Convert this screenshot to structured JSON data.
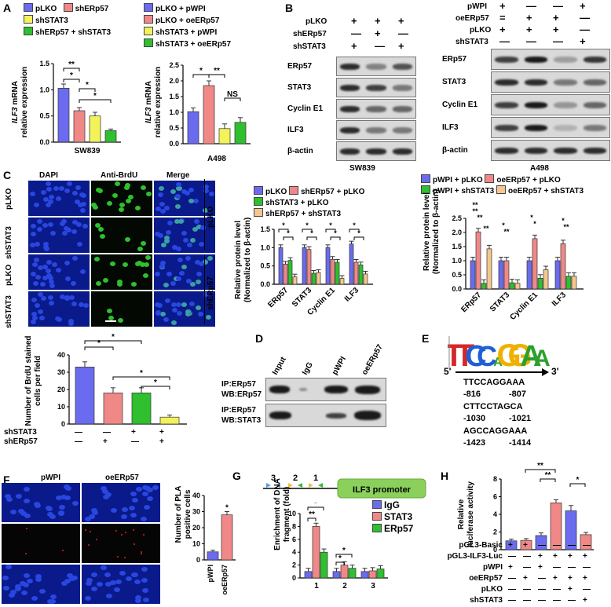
{
  "colors": {
    "blue": "#6b6bf0",
    "red": "#f08888",
    "yellow": "#f2f25a",
    "green": "#2fbf2f",
    "orange": "#f5c68f",
    "dapi": "#0c22a6",
    "brdu": "#169a16"
  },
  "panels": [
    "A",
    "B",
    "C",
    "D",
    "E",
    "F",
    "G",
    "H"
  ],
  "A": {
    "legend1": [
      "pLKO",
      "shERp57",
      "shSTAT3",
      "shERp57 + shSTAT3"
    ],
    "legend2": [
      "pLKO + pWPI",
      "pLKO + oeERp57",
      "shSTAT3 + pWPI",
      "shSTAT3 + oeERp57"
    ],
    "ylabel_gene": "ILF3",
    "ylabel_rest": " mRNA",
    "ylabel_line2": "relative expression",
    "sig1": [
      "**",
      "*",
      "*",
      "*"
    ],
    "sig2": [
      "*",
      "**",
      "NS"
    ]
  },
  "B": {
    "sw839_rows": [
      "pLKO",
      "shERp57",
      "shSTAT3"
    ],
    "sw839_signs": [
      [
        "+",
        "+",
        "+"
      ],
      [
        "—",
        "+",
        "—"
      ],
      [
        "+",
        "—",
        "+"
      ]
    ],
    "a498_rows": [
      "pWPI",
      "oeERp57",
      "pLKO",
      "shSTAT3"
    ],
    "a498_signs": [
      [
        "+",
        "—",
        "—",
        "+"
      ],
      [
        "=",
        "+",
        "+",
        "—"
      ],
      [
        "+",
        "+",
        "+",
        "—"
      ],
      [
        "—",
        "—",
        "—",
        "+"
      ]
    ],
    "proteins": [
      "ERp57",
      "STAT3",
      "Cyclin E1",
      "ILF3",
      "β-actin"
    ],
    "label_sw839": "SW839",
    "label_a498": "A498"
  },
  "C": {
    "col_headers": [
      "DAPI",
      "Anti-BrdU",
      "Merge"
    ],
    "row_labels": [
      "pLKO",
      "shSTAT3",
      "pLKO",
      "shSTAT3"
    ],
    "group_labels": [
      "pLKO",
      "shERp57"
    ],
    "sig_brdu": [
      "*",
      "*",
      "*",
      "*"
    ],
    "mid_legend": [
      "pLKO",
      "shERp57 + pLKO",
      "shSTAT3 + pLKO",
      "shERp57 + shSTAT3"
    ],
    "right_legend": [
      "pWPI + pLKO",
      "oeERp57 + pLKO",
      "pWPI + shSTAT3",
      "oeERp57 + shSTAT3"
    ],
    "protein_ylabel1": "Relative protein level",
    "protein_ylabel2": "(Normalized to β-actin)",
    "brdu_ylabel1": "Number of BrdU stained",
    "brdu_ylabel2": "cells per field",
    "brdu_rows": [
      "shSTAT3",
      "shERp57"
    ],
    "brdu_signs": [
      [
        "—",
        "—",
        "+",
        "+"
      ],
      [
        "—",
        "+",
        "—",
        "+"
      ]
    ]
  },
  "D": {
    "lanes": [
      "Input",
      "IgG",
      "pWPI",
      "oeERp57"
    ],
    "rows": [
      "IP:ERp57\nWB:ERp57",
      "IP:ERp57\nWB:STAT3"
    ]
  },
  "E": {
    "motif_letters": [
      "T",
      "T",
      "C",
      "C",
      "A",
      "G",
      "G",
      "A",
      "A"
    ],
    "prime5": "5'",
    "prime3": "3'",
    "seqs": [
      "TTCCAGGAAA",
      "CTTCCTAGCA",
      "AGCCAGGAAA"
    ],
    "positions": [
      [
        "-816",
        "-807"
      ],
      [
        "-1030",
        "-1021"
      ],
      [
        "-1423",
        "-1414"
      ]
    ]
  },
  "F": {
    "cols": [
      "pWPI",
      "oeERp57"
    ],
    "ylabel1": "Number of PLA",
    "ylabel2": "positive cells",
    "sig": "*"
  },
  "G": {
    "site_numbers": [
      "3",
      "2",
      "1"
    ],
    "promoter": "ILF3 promoter",
    "legend": [
      "IgG",
      "STAT3",
      "ERp57"
    ],
    "ylabel1": "Enrichment of DNA",
    "ylabel2": "fragment (fold)",
    "sig": [
      "*",
      "**",
      "*",
      "*"
    ]
  },
  "H": {
    "ylabel1": "Relative",
    "ylabel2": "luciferase activity",
    "rows": [
      "pGL3-Basic",
      "pGL3-ILF3-Luc",
      "pWPI",
      "oeERp57",
      "pLKO",
      "shSTAT3"
    ],
    "signs": [
      [
        "+",
        "+",
        "—",
        "—",
        "—",
        "—"
      ],
      [
        "—",
        "—",
        "+",
        "+",
        "+",
        "+"
      ],
      [
        "+",
        "—",
        "+",
        "—",
        "—",
        "—"
      ],
      [
        "—",
        "+",
        "—",
        "+",
        "+",
        "+"
      ],
      [
        "—",
        "—",
        "—",
        "—",
        "+",
        "—"
      ],
      [
        "—",
        "—",
        "—",
        "—",
        "—",
        "+"
      ]
    ],
    "sig": [
      "**",
      "**",
      "*"
    ]
  },
  "chart_data": [
    {
      "id": "A1",
      "type": "bar",
      "title": "",
      "xlabel": "SW839",
      "ylabel": "ILF3 mRNA relative expression",
      "ylim": [
        0,
        1.5
      ],
      "yticks": [
        "0.0",
        "0.5",
        "1.0",
        "1.5"
      ],
      "categories": [
        "pLKO",
        "shERp57",
        "shSTAT3",
        "shERp57 + shSTAT3"
      ],
      "values": [
        1.03,
        0.6,
        0.5,
        0.22
      ],
      "errors": [
        0.08,
        0.06,
        0.07,
        0.03
      ]
    },
    {
      "id": "A2",
      "type": "bar",
      "title": "",
      "xlabel": "A498",
      "ylabel": "ILF3 mRNA relative expression",
      "ylim": [
        0,
        2.5
      ],
      "yticks": [
        "0.0",
        "0.5",
        "1.0",
        "1.5",
        "2.0",
        "2.5"
      ],
      "categories": [
        "pLKO + pWPI",
        "pLKO + oeERp57",
        "shSTAT3 + pWPI",
        "shSTAT3 + oeERp57"
      ],
      "values": [
        1.02,
        1.85,
        0.48,
        0.68
      ],
      "errors": [
        0.12,
        0.15,
        0.15,
        0.15
      ]
    },
    {
      "id": "C_sw839",
      "type": "bar",
      "ylabel": "Relative protein level (Normalized to β-actin)",
      "ylim": [
        0,
        1.5
      ],
      "yticks": [
        "0.0",
        "0.5",
        "1.0",
        "1.5"
      ],
      "categories": [
        "ERp57",
        "STAT3",
        "Cyclin E1",
        "ILF3"
      ],
      "series": [
        {
          "name": "pLKO",
          "values": [
            1.0,
            1.0,
            1.0,
            1.1
          ]
        },
        {
          "name": "shERp57 + pLKO",
          "values": [
            0.55,
            0.95,
            0.68,
            0.6
          ]
        },
        {
          "name": "shSTAT3 + pLKO",
          "values": [
            0.65,
            0.3,
            0.6,
            0.53
          ]
        },
        {
          "name": "shERp57 + shSTAT3",
          "values": [
            0.2,
            0.32,
            0.16,
            0.28
          ]
        }
      ]
    },
    {
      "id": "C_a498",
      "type": "bar",
      "ylabel": "Relative protein level (Normalized to β-actin)",
      "ylim": [
        0,
        2.5
      ],
      "yticks": [
        "0.0",
        "0.5",
        "1.0",
        "1.5",
        "2.0",
        "2.5"
      ],
      "categories": [
        "ERp57",
        "STAT3",
        "Cyclin E1",
        "ILF3"
      ],
      "series": [
        {
          "name": "pWPI + pLKO",
          "values": [
            1.0,
            1.0,
            1.0,
            1.0
          ]
        },
        {
          "name": "oeERp57 + pLKO",
          "values": [
            2.02,
            1.0,
            1.78,
            1.6
          ]
        },
        {
          "name": "pWPI + shSTAT3",
          "values": [
            0.2,
            0.22,
            0.38,
            0.45
          ]
        },
        {
          "name": "oeERp57 + shSTAT3",
          "values": [
            1.42,
            0.2,
            0.68,
            0.45
          ]
        }
      ]
    },
    {
      "id": "C_brdu",
      "type": "bar",
      "ylabel": "Number of BrdU stained cells per field",
      "ylim": [
        0,
        40
      ],
      "yticks": [
        "0",
        "10",
        "20",
        "30",
        "40"
      ],
      "categories": [
        "shSTAT3- shERp57-",
        "shSTAT3- shERp57+",
        "shSTAT3+ shERp57-",
        "shSTAT3+ shERp57+"
      ],
      "values": [
        33,
        18,
        18,
        4
      ],
      "errors": [
        3,
        3,
        3,
        1.2
      ]
    },
    {
      "id": "F",
      "type": "bar",
      "ylabel": "Number of PLA positive cells",
      "ylim": [
        0,
        40
      ],
      "yticks": [
        "0",
        "10",
        "20",
        "30",
        "40"
      ],
      "categories": [
        "pWPI",
        "oeERp57"
      ],
      "values": [
        5,
        28
      ],
      "errors": [
        1,
        2
      ]
    },
    {
      "id": "G",
      "type": "bar",
      "ylabel": "Enrichment of DNA fragment (fold)",
      "ylim": [
        0,
        10
      ],
      "yticks": [
        "0",
        "2",
        "4",
        "6",
        "8",
        "10"
      ],
      "categories": [
        "1",
        "2",
        "3"
      ],
      "series": [
        {
          "name": "IgG",
          "values": [
            1.0,
            1.0,
            1.0
          ]
        },
        {
          "name": "STAT3",
          "values": [
            8.0,
            2.0,
            1.1
          ]
        },
        {
          "name": "ERp57",
          "values": [
            4.0,
            1.5,
            1.4
          ]
        }
      ]
    },
    {
      "id": "H",
      "type": "bar",
      "ylabel": "Relative luciferase activity",
      "ylim": [
        0,
        8
      ],
      "yticks": [
        "0",
        "2",
        "4",
        "6",
        "8"
      ],
      "categories": [
        "1",
        "2",
        "3",
        "4",
        "5",
        "6"
      ],
      "values": [
        1.0,
        1.05,
        1.6,
        5.3,
        4.4,
        1.7
      ],
      "errors": [
        0.2,
        0.2,
        0.3,
        0.35,
        0.6,
        0.25
      ]
    }
  ]
}
